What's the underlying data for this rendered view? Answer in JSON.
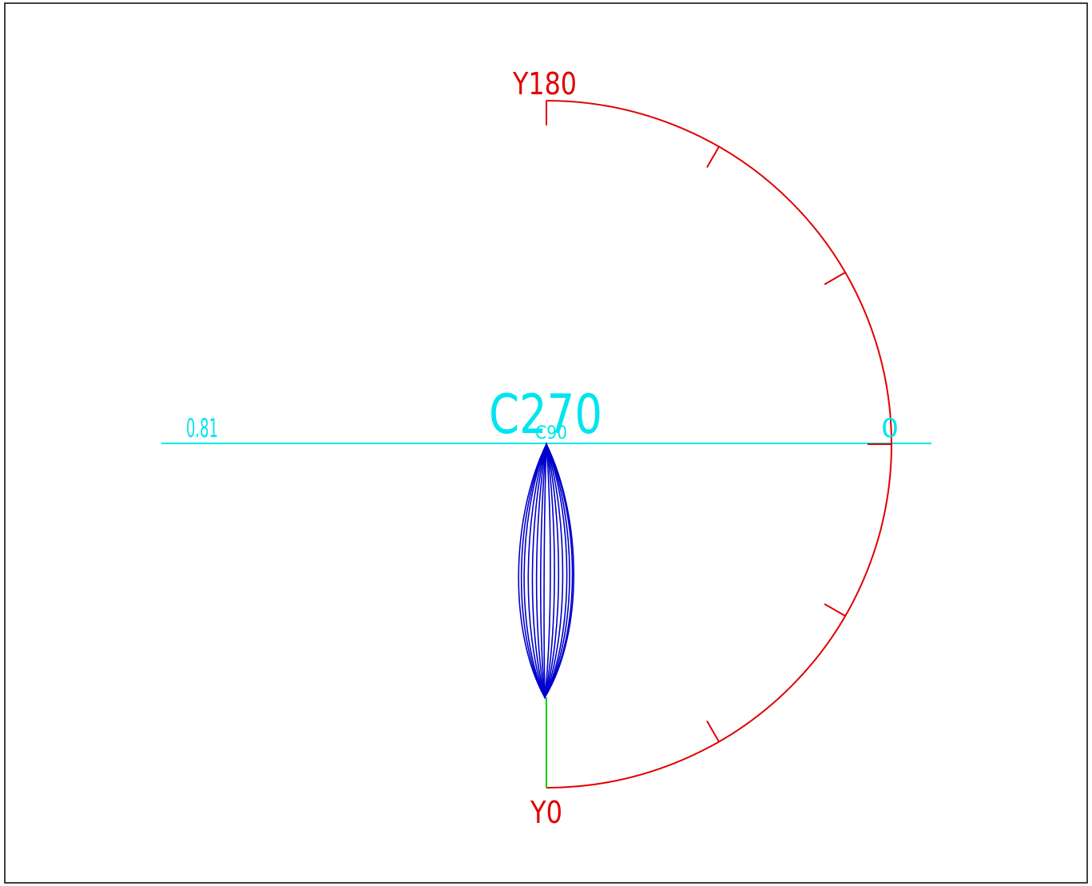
{
  "diagram": {
    "axis_labels": {
      "top": "Y180",
      "bottom": "Y0",
      "plane": "C270",
      "plane_sub": "C90",
      "left_value": "0.81",
      "right_value": "0"
    },
    "colors": {
      "frame": "#000000",
      "arc": "#e00000",
      "horizontal_axis": "#00e5ee",
      "lobe": "#0000cc",
      "vertical_stem": "#00cc00",
      "background": "#ffffff"
    },
    "arc": {
      "from_deg": 0,
      "to_deg": 180,
      "tick_deg": [
        30,
        60,
        90,
        120,
        150
      ]
    },
    "lobe": {
      "curve_count": 8,
      "description_type": "light-distribution-curves"
    }
  }
}
